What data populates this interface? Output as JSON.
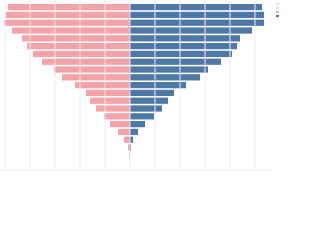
{
  "chart_data": {
    "type": "pyramid",
    "categories": [
      null,
      null,
      null,
      null,
      null,
      null,
      null,
      null,
      null,
      null,
      null,
      null,
      null,
      null,
      null,
      null,
      null,
      null,
      null,
      null
    ],
    "series": [
      {
        "color": "#f4a3ab",
        "side": "left",
        "values": [
          122,
          124,
          126,
          118,
          108,
          103,
          97,
          88,
          76,
          68,
          55,
          44,
          40,
          34,
          26,
          20,
          12,
          6,
          2,
          1
        ]
      },
      {
        "color": "#4e79a7",
        "side": "right",
        "values": [
          132,
          134,
          134,
          122,
          110,
          107,
          102,
          91,
          78,
          70,
          56,
          44,
          38,
          32,
          24,
          15,
          8,
          3,
          1,
          0.5
        ]
      }
    ],
    "xlim": [
      -130,
      150
    ],
    "xticks": [
      -125,
      -100,
      -75,
      -50,
      -25,
      0,
      25,
      50,
      75,
      100,
      125,
      150
    ],
    "grid": true
  }
}
